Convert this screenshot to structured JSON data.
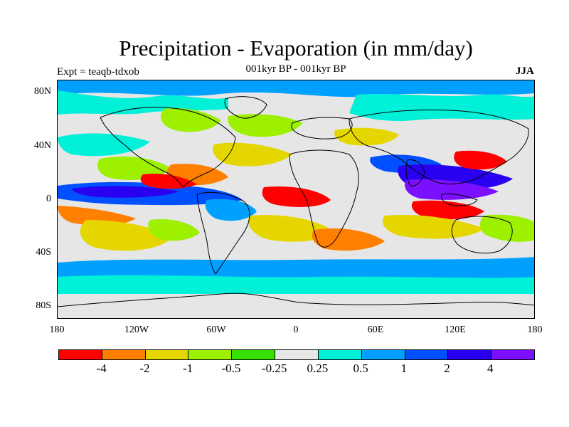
{
  "title": "Precipitation - Evaporation (in mm/day)",
  "subtitle": "001kyr BP - 001kyr BP",
  "experiment": "Expt = teaqb-tdxob",
  "season": "JJA",
  "map": {
    "projection": "cylindrical equidistant",
    "lon_range": [
      -180,
      180
    ],
    "lat_range": [
      -90,
      90
    ],
    "background_color": "#e6e6e6",
    "lat_ticks": [
      "80N",
      "40N",
      "0",
      "40S",
      "80S"
    ],
    "lon_ticks": [
      "180",
      "120W",
      "60W",
      "0",
      "60E",
      "120E",
      "180"
    ]
  },
  "colorbar": {
    "colors": [
      "#ff0000",
      "#ff7f00",
      "#e6d600",
      "#9cf000",
      "#33e000",
      "#e6e6e6",
      "#00f0d8",
      "#00a0ff",
      "#0050ff",
      "#2a00f0",
      "#7a10ff"
    ],
    "labels": [
      "-4",
      "-2",
      "-1",
      "-0.5",
      "-0.25",
      "0.25",
      "0.5",
      "1",
      "2",
      "4"
    ]
  }
}
